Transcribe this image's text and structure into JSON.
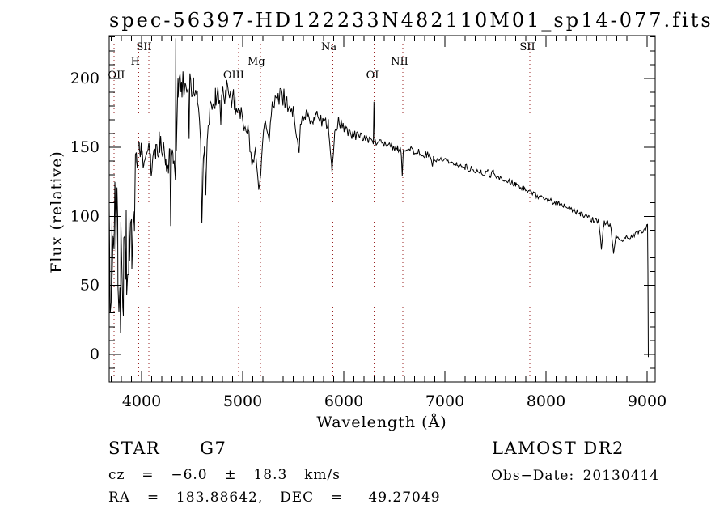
{
  "annotations": {
    "class_label": "STAR      G7",
    "survey": "LAMOST DR2",
    "cz": "cz  =  −6.0  ±  18.3  km/s",
    "obs_date": "Obs−Date: 20130414",
    "ra_dec": "RA  =  183.88642,  DEC  =   49.27049"
  },
  "chart_data": {
    "type": "line",
    "title": "spec-56397-HD122233N482110M01_sp14-077.fits",
    "xlabel": "Wavelength (Å)",
    "ylabel": "Flux (relative)",
    "xlim": [
      3680,
      9080
    ],
    "ylim": [
      -20,
      231
    ],
    "x_ticks_major": [
      4000,
      5000,
      6000,
      7000,
      8000,
      9000
    ],
    "x_tick_minor_step": 100,
    "y_ticks_major": [
      0,
      50,
      100,
      150,
      200
    ],
    "y_tick_minor_step": 10,
    "grid": false,
    "legend": "none",
    "line_color": "#000000",
    "marker_color": "#992222",
    "line_markers": [
      {
        "label": "OII",
        "wavelength": 3727,
        "row": 3,
        "dx": 3
      },
      {
        "label": "H",
        "wavelength": 3970,
        "row": 2,
        "dx": -4
      },
      {
        "label": "SII",
        "wavelength": 4072,
        "row": 1,
        "dx": -6
      },
      {
        "label": "OIII",
        "wavelength": 4959,
        "row": 3,
        "dx": -6
      },
      {
        "label": "Mg",
        "wavelength": 5175,
        "row": 2,
        "dx": -5
      },
      {
        "label": "Na",
        "wavelength": 5893,
        "row": 1,
        "dx": -5
      },
      {
        "label": "OI",
        "wavelength": 6300,
        "row": 3,
        "dx": -2
      },
      {
        "label": "NII",
        "wavelength": 6584,
        "row": 2,
        "dx": -4
      },
      {
        "label": "SII",
        "wavelength": 7840,
        "row": 1,
        "dx": -3
      }
    ],
    "spectrum_envelope": [
      [
        3680,
        70,
        62
      ],
      [
        3708,
        76,
        62
      ],
      [
        3736,
        68,
        60
      ],
      [
        3764,
        74,
        58
      ],
      [
        3792,
        70,
        55
      ],
      [
        3820,
        74,
        52
      ],
      [
        3848,
        78,
        50
      ],
      [
        3876,
        86,
        45
      ],
      [
        3904,
        94,
        36
      ],
      [
        3928,
        112,
        26
      ],
      [
        3950,
        138,
        14
      ],
      [
        3978,
        150,
        8
      ],
      [
        4000,
        146,
        9
      ],
      [
        4022,
        136,
        7
      ],
      [
        4048,
        152,
        10
      ],
      [
        4070,
        146,
        8
      ],
      [
        4088,
        146,
        7
      ],
      [
        4096,
        127,
        2
      ],
      [
        4108,
        147,
        8
      ],
      [
        4140,
        146,
        9
      ],
      [
        4175,
        151,
        11
      ],
      [
        4210,
        150,
        10
      ],
      [
        4240,
        140,
        9
      ],
      [
        4262,
        132,
        7
      ],
      [
        4280,
        148,
        6
      ],
      [
        4288,
        93,
        1
      ],
      [
        4296,
        142,
        6
      ],
      [
        4310,
        146,
        7
      ],
      [
        4322,
        138,
        6
      ],
      [
        4334,
        128,
        2
      ],
      [
        4338,
        229,
        0
      ],
      [
        4344,
        150,
        4
      ],
      [
        4360,
        192,
        9
      ],
      [
        4395,
        196,
        10
      ],
      [
        4430,
        193,
        11
      ],
      [
        4462,
        196,
        10
      ],
      [
        4470,
        158,
        4
      ],
      [
        4478,
        194,
        10
      ],
      [
        4515,
        193,
        10
      ],
      [
        4552,
        190,
        9
      ],
      [
        4585,
        153,
        6
      ],
      [
        4597,
        94,
        2
      ],
      [
        4609,
        139,
        6
      ],
      [
        4621,
        151,
        6
      ],
      [
        4635,
        114,
        3
      ],
      [
        4651,
        161,
        6
      ],
      [
        4688,
        182,
        8
      ],
      [
        4730,
        187,
        9
      ],
      [
        4776,
        186,
        8
      ],
      [
        4784,
        163,
        4
      ],
      [
        4792,
        186,
        8
      ],
      [
        4836,
        191,
        9
      ],
      [
        4880,
        189,
        9
      ],
      [
        4925,
        181,
        8
      ],
      [
        4970,
        176,
        7
      ],
      [
        5015,
        168,
        7
      ],
      [
        5055,
        160,
        7
      ],
      [
        5096,
        137,
        3
      ],
      [
        5128,
        151,
        5
      ],
      [
        5158,
        120,
        2
      ],
      [
        5178,
        128,
        3
      ],
      [
        5212,
        171,
        7
      ],
      [
        5262,
        155,
        3
      ],
      [
        5296,
        180,
        7
      ],
      [
        5340,
        187,
        7
      ],
      [
        5385,
        189,
        7
      ],
      [
        5440,
        181,
        7
      ],
      [
        5500,
        177,
        6
      ],
      [
        5558,
        148,
        2
      ],
      [
        5576,
        170,
        5
      ],
      [
        5640,
        173,
        6
      ],
      [
        5720,
        172,
        6
      ],
      [
        5800,
        169,
        5
      ],
      [
        5848,
        166,
        5
      ],
      [
        5884,
        132,
        2
      ],
      [
        5910,
        163,
        4
      ],
      [
        5948,
        169,
        4
      ],
      [
        6010,
        163,
        4
      ],
      [
        6080,
        160,
        4
      ],
      [
        6160,
        157,
        4
      ],
      [
        6240,
        155,
        3
      ],
      [
        6292,
        154,
        2
      ],
      [
        6298,
        183,
        0
      ],
      [
        6306,
        154,
        2
      ],
      [
        6370,
        153,
        3
      ],
      [
        6450,
        151,
        3
      ],
      [
        6530,
        149,
        3
      ],
      [
        6566,
        148,
        2
      ],
      [
        6578,
        129,
        0
      ],
      [
        6590,
        149,
        2
      ],
      [
        6660,
        148,
        3
      ],
      [
        6740,
        146,
        3
      ],
      [
        6820,
        145,
        3
      ],
      [
        6860,
        143,
        2
      ],
      [
        6872,
        136,
        2
      ],
      [
        6886,
        142,
        2
      ],
      [
        6960,
        141,
        2
      ],
      [
        7040,
        140,
        2
      ],
      [
        7120,
        138,
        2
      ],
      [
        7200,
        136,
        3
      ],
      [
        7280,
        134,
        2
      ],
      [
        7360,
        132,
        2
      ],
      [
        7440,
        131,
        3
      ],
      [
        7480,
        132,
        3
      ],
      [
        7540,
        128,
        2
      ],
      [
        7620,
        126,
        2
      ],
      [
        7700,
        123,
        2
      ],
      [
        7780,
        120,
        2
      ],
      [
        7860,
        117,
        2
      ],
      [
        7940,
        114,
        2
      ],
      [
        8020,
        112,
        2
      ],
      [
        8100,
        110,
        2
      ],
      [
        8180,
        108,
        2
      ],
      [
        8260,
        105,
        2
      ],
      [
        8340,
        102,
        2
      ],
      [
        8420,
        99,
        2
      ],
      [
        8480,
        97,
        2
      ],
      [
        8524,
        96,
        2
      ],
      [
        8548,
        76,
        0
      ],
      [
        8572,
        95,
        2
      ],
      [
        8610,
        96,
        2
      ],
      [
        8642,
        93,
        2
      ],
      [
        8668,
        73,
        0
      ],
      [
        8692,
        86,
        1
      ],
      [
        8720,
        84,
        1
      ],
      [
        8748,
        82,
        1
      ],
      [
        8790,
        84,
        2
      ],
      [
        8850,
        86,
        2
      ],
      [
        8910,
        88,
        2
      ],
      [
        8955,
        90,
        2
      ],
      [
        8985,
        91,
        2
      ],
      [
        9004,
        94,
        1
      ],
      [
        9008,
        60,
        0
      ],
      [
        9012,
        -2,
        0
      ]
    ]
  }
}
